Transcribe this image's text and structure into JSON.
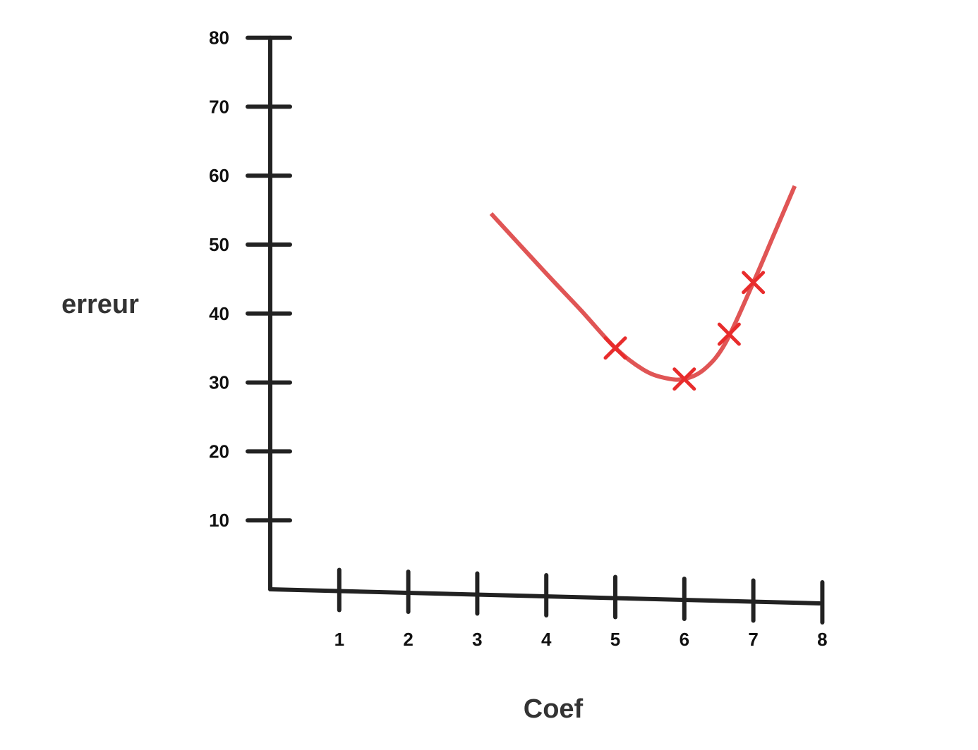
{
  "chart_data": {
    "type": "line",
    "title": "",
    "xlabel": "Coef",
    "ylabel": "erreur",
    "xlim": [
      0,
      8
    ],
    "ylim": [
      0,
      80
    ],
    "x_ticks": [
      1,
      2,
      3,
      4,
      5,
      6,
      7,
      8
    ],
    "y_ticks": [
      10,
      20,
      30,
      40,
      50,
      60,
      70,
      80
    ],
    "x_tick_labels": [
      "1",
      "2",
      "3",
      "4",
      "5",
      "6",
      "7",
      "8"
    ],
    "y_tick_labels": [
      "10",
      "20",
      "30",
      "40",
      "50",
      "60",
      "70",
      "80"
    ],
    "grid": false,
    "legend": "none",
    "series": [
      {
        "color": "#e05555",
        "curve": [
          {
            "x": 3.2,
            "y": 54.5
          },
          {
            "x": 4.0,
            "y": 45.8
          },
          {
            "x": 4.5,
            "y": 40.5
          },
          {
            "x": 5.0,
            "y": 35.0
          },
          {
            "x": 5.4,
            "y": 31.9
          },
          {
            "x": 5.7,
            "y": 30.7
          },
          {
            "x": 6.0,
            "y": 30.5
          },
          {
            "x": 6.3,
            "y": 32.0
          },
          {
            "x": 6.6,
            "y": 35.8
          },
          {
            "x": 7.0,
            "y": 44.5
          },
          {
            "x": 7.3,
            "y": 51.5
          },
          {
            "x": 7.6,
            "y": 58.5
          }
        ],
        "markers": [
          {
            "x": 5.0,
            "y": 35.0
          },
          {
            "x": 6.0,
            "y": 30.5
          },
          {
            "x": 6.65,
            "y": 37.0
          },
          {
            "x": 7.0,
            "y": 44.5
          }
        ],
        "marker_color": "#e82c2c",
        "marker_shape": "x"
      }
    ]
  }
}
